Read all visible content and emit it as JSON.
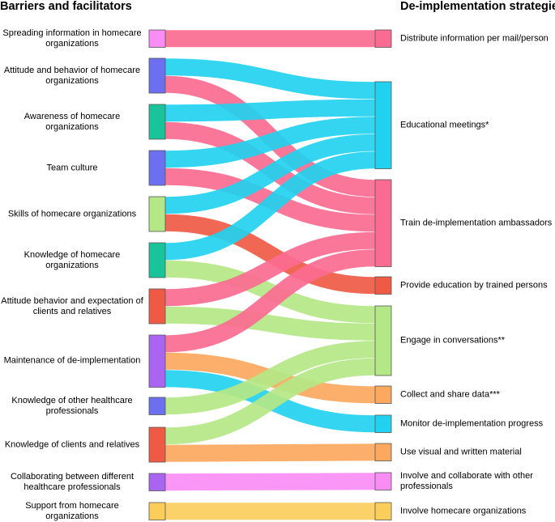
{
  "headers": {
    "left": "Barriers and facilitators",
    "right": "De-implementation strategies"
  },
  "left_nodes": [
    {
      "id": "spreading",
      "label": "Spreading information in homecare organizations",
      "color": "#f98df5"
    },
    {
      "id": "attitude_hc",
      "label": "Attitude and behavior of homecare organizations",
      "color": "#6b6ff0"
    },
    {
      "id": "awareness",
      "label": "Awareness of homecare organizations",
      "color": "#1ac49a"
    },
    {
      "id": "team",
      "label": "Team culture",
      "color": "#6b6ff0"
    },
    {
      "id": "skills",
      "label": "Skills of homecare organizations",
      "color": "#b4e785"
    },
    {
      "id": "knowledge_hc",
      "label": "Knowledge of homecare organizations",
      "color": "#1ac49a"
    },
    {
      "id": "attitude_clients",
      "label": "Attitude behavior and expectation of clients and relatives",
      "color": "#ef5a45"
    },
    {
      "id": "maintenance",
      "label": "Maintenance of de-implementation",
      "color": "#a965ef"
    },
    {
      "id": "knowledge_other",
      "label": "Knowledge of other healthcare professionals",
      "color": "#6b6ff0"
    },
    {
      "id": "knowledge_clients",
      "label": "Knowledge of clients and relatives",
      "color": "#ef5a45"
    },
    {
      "id": "collaborating",
      "label": "Collaborating between different healthcare professionals",
      "color": "#a965ef"
    },
    {
      "id": "support",
      "label": "Support from homecare organizations",
      "color": "#fbce5c"
    }
  ],
  "right_nodes": [
    {
      "id": "distribute",
      "label": "Distribute information per mail/person",
      "color": "#fb6b91"
    },
    {
      "id": "educational",
      "label": "Educational meetings*",
      "color": "#22d1ef"
    },
    {
      "id": "train",
      "label": "Train de-implementation ambassadors",
      "color": "#fb6b91"
    },
    {
      "id": "provide",
      "label": "Provide education by trained persons",
      "color": "#ef5a45"
    },
    {
      "id": "engage",
      "label": "Engage in conversations**",
      "color": "#b4e785"
    },
    {
      "id": "collect",
      "label": "Collect and share data***",
      "color": "#fca85e"
    },
    {
      "id": "monitor",
      "label": "Monitor de-implementation progress",
      "color": "#22d1ef"
    },
    {
      "id": "visual",
      "label": "Use visual and written material",
      "color": "#fca85e"
    },
    {
      "id": "involve_collab",
      "label": "Involve and collaborate with other professionals",
      "color": "#f98df5"
    },
    {
      "id": "involve_hc",
      "label": "Involve homecare organizations",
      "color": "#fbce5c"
    }
  ],
  "links": [
    {
      "source": "spreading",
      "target": "distribute",
      "value": 1,
      "color": "#fb6b91"
    },
    {
      "source": "attitude_hc",
      "target": "educational",
      "value": 1,
      "color": "#22d1ef"
    },
    {
      "source": "attitude_hc",
      "target": "train",
      "value": 1,
      "color": "#fb6b91"
    },
    {
      "source": "awareness",
      "target": "educational",
      "value": 1,
      "color": "#22d1ef"
    },
    {
      "source": "awareness",
      "target": "train",
      "value": 1,
      "color": "#fb6b91"
    },
    {
      "source": "team",
      "target": "educational",
      "value": 1,
      "color": "#22d1ef"
    },
    {
      "source": "team",
      "target": "train",
      "value": 1,
      "color": "#fb6b91"
    },
    {
      "source": "skills",
      "target": "educational",
      "value": 1,
      "color": "#22d1ef"
    },
    {
      "source": "skills",
      "target": "provide",
      "value": 1,
      "color": "#ef5a45"
    },
    {
      "source": "knowledge_hc",
      "target": "educational",
      "value": 1,
      "color": "#22d1ef"
    },
    {
      "source": "knowledge_hc",
      "target": "engage",
      "value": 1,
      "color": "#b4e785"
    },
    {
      "source": "attitude_clients",
      "target": "train",
      "value": 1,
      "color": "#fb6b91"
    },
    {
      "source": "attitude_clients",
      "target": "engage",
      "value": 1,
      "color": "#b4e785"
    },
    {
      "source": "maintenance",
      "target": "train",
      "value": 1,
      "color": "#fb6b91"
    },
    {
      "source": "maintenance",
      "target": "collect",
      "value": 1,
      "color": "#fca85e"
    },
    {
      "source": "maintenance",
      "target": "monitor",
      "value": 1,
      "color": "#22d1ef"
    },
    {
      "source": "knowledge_other",
      "target": "engage",
      "value": 1,
      "color": "#b4e785"
    },
    {
      "source": "knowledge_clients",
      "target": "engage",
      "value": 1,
      "color": "#b4e785"
    },
    {
      "source": "knowledge_clients",
      "target": "visual",
      "value": 1,
      "color": "#fca85e"
    },
    {
      "source": "collaborating",
      "target": "involve_collab",
      "value": 1,
      "color": "#f98df5"
    },
    {
      "source": "support",
      "target": "involve_hc",
      "value": 1,
      "color": "#fbce5c"
    }
  ]
}
